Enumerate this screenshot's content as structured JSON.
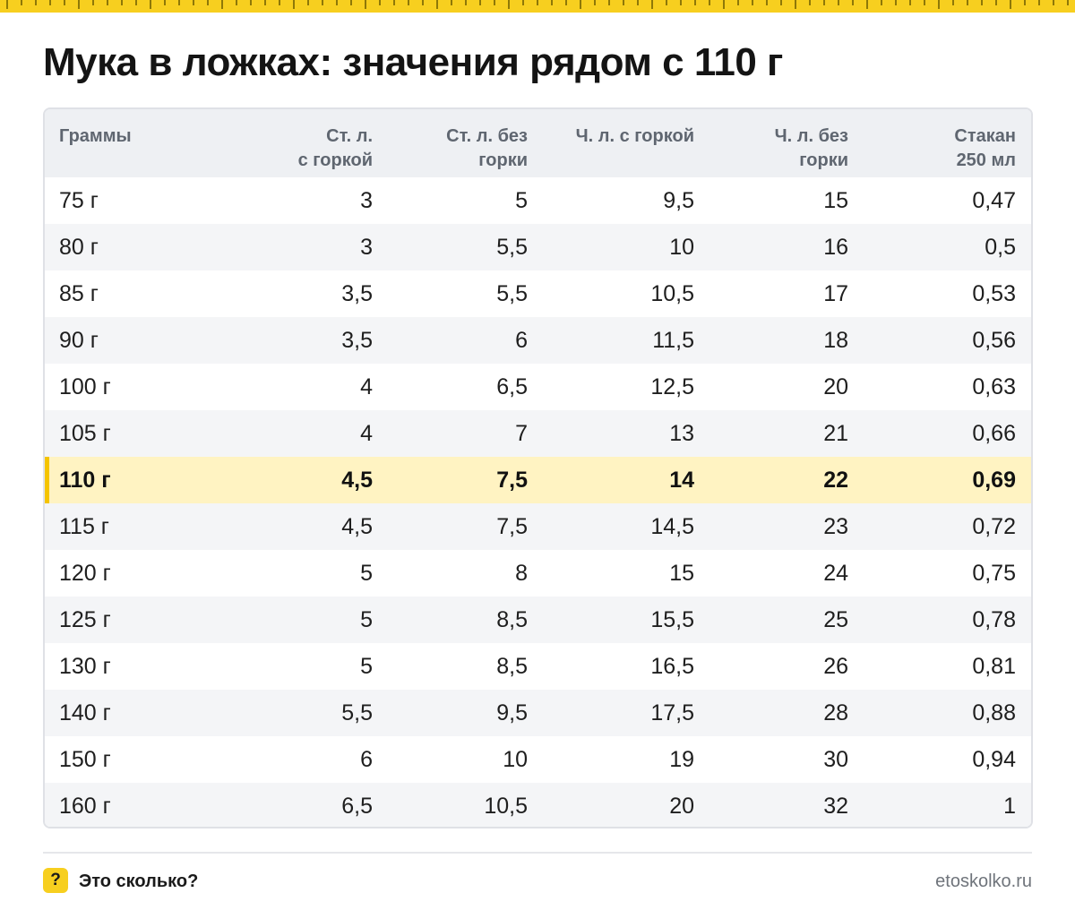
{
  "theme": {
    "accent": "#f7cf1f",
    "highlight_row_bg": "#fff3c2",
    "header_bg": "#eef0f3",
    "stripe_bg": "#f4f5f7"
  },
  "title": "Мука в ложках: значения рядом с 110 г",
  "table": {
    "headers": [
      [
        "Граммы"
      ],
      [
        "Ст. л.",
        "с горкой"
      ],
      [
        "Ст. л. без",
        "горки"
      ],
      [
        "Ч. л. с горкой"
      ],
      [
        "Ч. л. без",
        "горки"
      ],
      [
        "Стакан",
        "250 мл"
      ]
    ],
    "highlight_index": 6,
    "rows": [
      [
        "75 г",
        "3",
        "5",
        "9,5",
        "15",
        "0,47"
      ],
      [
        "80 г",
        "3",
        "5,5",
        "10",
        "16",
        "0,5"
      ],
      [
        "85 г",
        "3,5",
        "5,5",
        "10,5",
        "17",
        "0,53"
      ],
      [
        "90 г",
        "3,5",
        "6",
        "11,5",
        "18",
        "0,56"
      ],
      [
        "100 г",
        "4",
        "6,5",
        "12,5",
        "20",
        "0,63"
      ],
      [
        "105 г",
        "4",
        "7",
        "13",
        "21",
        "0,66"
      ],
      [
        "110 г",
        "4,5",
        "7,5",
        "14",
        "22",
        "0,69"
      ],
      [
        "115 г",
        "4,5",
        "7,5",
        "14,5",
        "23",
        "0,72"
      ],
      [
        "120 г",
        "5",
        "8",
        "15",
        "24",
        "0,75"
      ],
      [
        "125 г",
        "5",
        "8,5",
        "15,5",
        "25",
        "0,78"
      ],
      [
        "130 г",
        "5",
        "8,5",
        "16,5",
        "26",
        "0,81"
      ],
      [
        "140 г",
        "5,5",
        "9,5",
        "17,5",
        "28",
        "0,88"
      ],
      [
        "150 г",
        "6",
        "10",
        "19",
        "30",
        "0,94"
      ],
      [
        "160 г",
        "6,5",
        "10,5",
        "20",
        "32",
        "1"
      ]
    ]
  },
  "footer": {
    "badge_icon": "question-mark-icon",
    "badge_text": "?",
    "brand": "Это сколько?",
    "site": "etoskolko.ru"
  }
}
